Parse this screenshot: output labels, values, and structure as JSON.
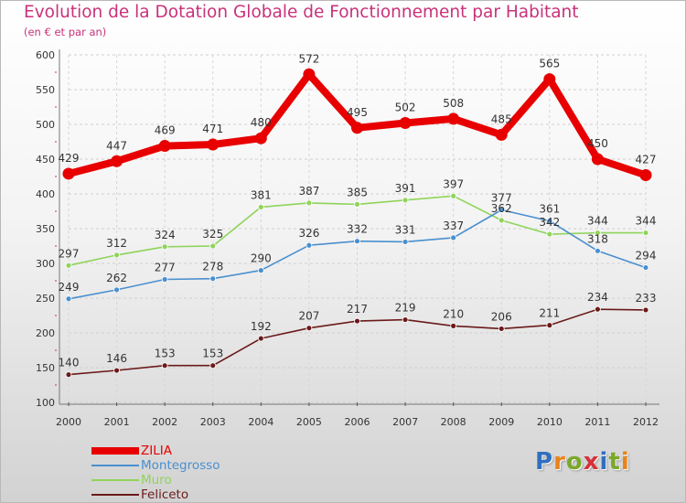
{
  "header": {
    "title": "Evolution de la Dotation Globale de Fonctionnement par Habitant",
    "subtitle": "(en € et par an)"
  },
  "logo": {
    "text": "Proxiti",
    "letter_colors": [
      "#2f6fbf",
      "#e8831b",
      "#7aa82a",
      "#d6323a",
      "#2f6fbf",
      "#7aa82a",
      "#e8831b"
    ]
  },
  "chart_data": {
    "type": "line",
    "title": "Evolution de la Dotation Globale de Fonctionnement par Habitant",
    "subtitle": "(en € et par an)",
    "x": [
      2000,
      2001,
      2002,
      2003,
      2004,
      2005,
      2006,
      2007,
      2008,
      2009,
      2010,
      2011,
      2012
    ],
    "x_tick_labels": [
      "2000",
      "2001",
      "2002",
      "2003",
      "2004",
      "2005",
      "2006",
      "2007",
      "2008",
      "2009",
      "2010",
      "2011",
      "2012"
    ],
    "ylim": [
      100,
      600
    ],
    "y_ticks": [
      100,
      150,
      200,
      250,
      300,
      350,
      400,
      450,
      500,
      550,
      600
    ],
    "y_tick_labels": [
      "100",
      "150",
      "200",
      "250",
      "300",
      "350",
      "400",
      "450",
      "500",
      "550",
      "600"
    ],
    "grid": true,
    "legend_position": "bottom-left",
    "series": [
      {
        "name": "ZILIA",
        "color": "#e80000",
        "values": [
          429,
          447,
          469,
          471,
          480,
          572,
          495,
          502,
          508,
          485,
          565,
          450,
          427
        ],
        "labels": [
          "429",
          "447",
          "469",
          "471",
          "480",
          "572",
          "495",
          "502",
          "508",
          "485",
          "565",
          "450",
          "427"
        ]
      },
      {
        "name": "Montegrosso",
        "color": "#4a8fcf",
        "values": [
          249,
          262,
          277,
          278,
          290,
          326,
          332,
          331,
          337,
          377,
          361,
          318,
          294
        ],
        "labels": [
          "249",
          "262",
          "277",
          "278",
          "290",
          "326",
          "332",
          "331",
          "337",
          "377",
          "361",
          "318",
          "294"
        ]
      },
      {
        "name": "Muro",
        "color": "#8fd45a",
        "values": [
          297,
          312,
          324,
          325,
          381,
          387,
          385,
          391,
          397,
          362,
          342,
          344,
          344
        ],
        "labels": [
          "297",
          "312",
          "324",
          "325",
          "381",
          "387",
          "385",
          "391",
          "397",
          "362",
          "342",
          "344",
          "344"
        ]
      },
      {
        "name": "Feliceto",
        "color": "#6b1a1a",
        "values": [
          140,
          146,
          153,
          153,
          192,
          207,
          217,
          219,
          210,
          206,
          211,
          234,
          233
        ],
        "labels": [
          "140",
          "146",
          "153",
          "153",
          "192",
          "207",
          "217",
          "219",
          "210",
          "206",
          "211",
          "234",
          "233"
        ]
      }
    ]
  }
}
